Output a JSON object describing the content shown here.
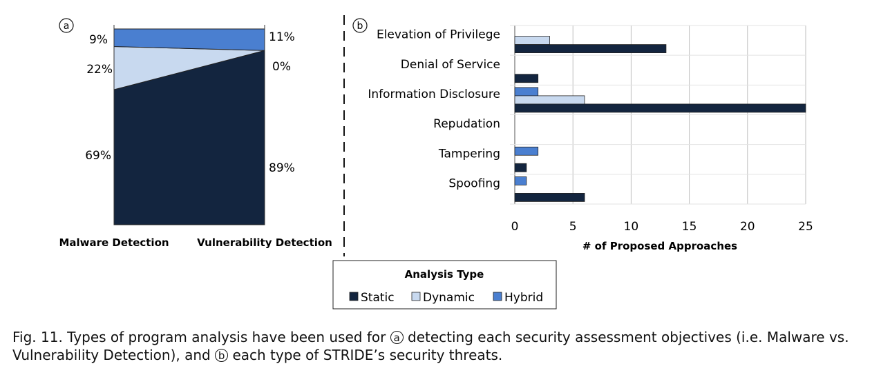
{
  "chart_data": [
    {
      "type": "area",
      "panel_marker": "a",
      "categories": [
        "Malware Detection",
        "Vulnerability Detection"
      ],
      "series": [
        {
          "name": "Static",
          "values": [
            69,
            89
          ],
          "labels": [
            "69%",
            "89%"
          ]
        },
        {
          "name": "Dynamic",
          "values": [
            22,
            0
          ],
          "labels": [
            "22%",
            "0%"
          ]
        },
        {
          "name": "Hybrid",
          "values": [
            9,
            11
          ],
          "labels": [
            "9%",
            "11%"
          ]
        }
      ],
      "ylim": [
        0,
        100
      ]
    },
    {
      "type": "bar",
      "orientation": "horizontal",
      "panel_marker": "b",
      "categories": [
        "Elevation of Privilege",
        "Denial of Service",
        "Information Disclosure",
        "Repudation",
        "Tampering",
        "Spoofing"
      ],
      "series": [
        {
          "name": "Hybrid",
          "values": [
            0,
            0,
            2,
            0,
            2,
            1
          ]
        },
        {
          "name": "Dynamic",
          "values": [
            3,
            0,
            6,
            0,
            0,
            0
          ]
        },
        {
          "name": "Static",
          "values": [
            13,
            2,
            25,
            0,
            1,
            6
          ]
        }
      ],
      "xlim": [
        0,
        25
      ],
      "xticks": [
        "0",
        "5",
        "10",
        "15",
        "20",
        "25"
      ],
      "xlabel": "# of Proposed Approaches",
      "grid": true
    }
  ],
  "legend": {
    "title": "Analysis Type",
    "items": [
      {
        "label": "Static",
        "color": "#13253f"
      },
      {
        "label": "Dynamic",
        "color": "#c8d9ef"
      },
      {
        "label": "Hybrid",
        "color": "#4a7fd0"
      }
    ]
  },
  "colors": {
    "static": "#13253f",
    "dynamic": "#c8d9ef",
    "hybrid": "#4a7fd0",
    "grid": "#bdbdbd"
  },
  "caption": {
    "prefix": "Fig. 11.  Types of program analysis have been used for",
    "marker_a": "a",
    "middle": "detecting each security assessment objectives (i.e. Malware vs. Vulnerability Detection), and",
    "marker_b": "b",
    "suffix": "each type of STRIDE’s security threats."
  }
}
